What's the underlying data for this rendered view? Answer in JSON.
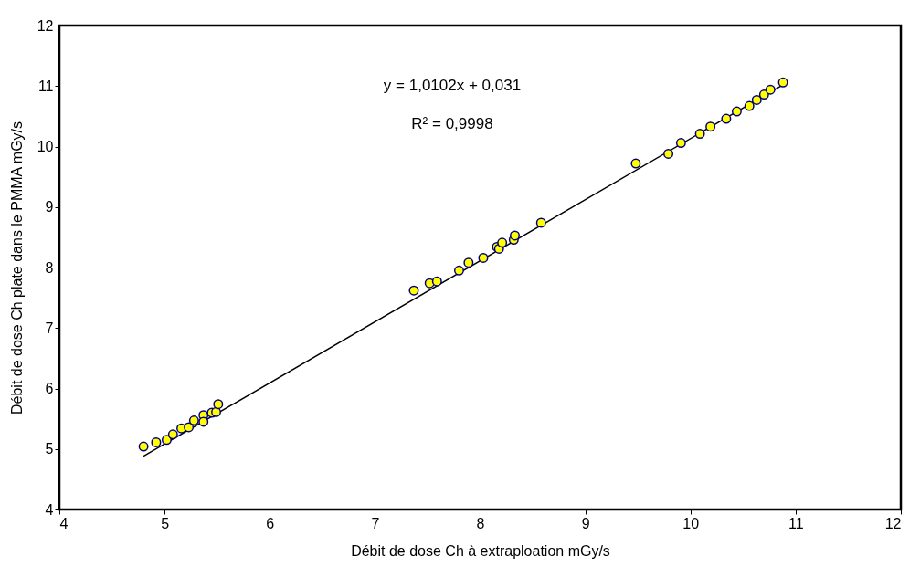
{
  "chart_data": {
    "type": "scatter",
    "xlabel": "Débit de dose Ch à extraploation mGy/s",
    "ylabel": "Débit de dose Ch plate dans le PMMA mGy/s",
    "series": [
      {
        "marker": "circle",
        "color": "#ffff00",
        "x": [
          4.8,
          4.92,
          5.02,
          5.08,
          5.16,
          5.23,
          5.28,
          5.37,
          5.37,
          5.45,
          5.49,
          5.51,
          7.37,
          7.52,
          7.59,
          7.8,
          7.89,
          8.03,
          8.16,
          8.18,
          8.21,
          8.32,
          8.33,
          8.58,
          9.48,
          9.79,
          9.91,
          10.09,
          10.19,
          10.34,
          10.44,
          10.56,
          10.63,
          10.7,
          10.76,
          10.88
        ],
        "values": [
          5.04,
          5.11,
          5.15,
          5.24,
          5.34,
          5.36,
          5.47,
          5.56,
          5.45,
          5.6,
          5.61,
          5.74,
          7.62,
          7.74,
          7.77,
          7.95,
          8.08,
          8.16,
          8.34,
          8.31,
          8.41,
          8.46,
          8.53,
          8.74,
          9.72,
          9.88,
          10.06,
          10.21,
          10.33,
          10.46,
          10.58,
          10.67,
          10.77,
          10.86,
          10.94,
          11.06
        ]
      },
      {
        "type": "line",
        "marker": "none",
        "color": "#000000",
        "x": [
          4.8,
          10.88
        ],
        "values": [
          4.88,
          11.02
        ]
      }
    ],
    "xlim": [
      4,
      12
    ],
    "ylim": [
      4,
      12
    ],
    "xticks": [
      4,
      5,
      6,
      7,
      8,
      9,
      10,
      11,
      12
    ],
    "yticks": [
      4,
      5,
      6,
      7,
      8,
      9,
      10,
      11,
      12
    ],
    "grid": false,
    "line_style": "solid",
    "annotations": [
      "y = 1,0102x + 0,031",
      "R² = 0,9998"
    ]
  }
}
